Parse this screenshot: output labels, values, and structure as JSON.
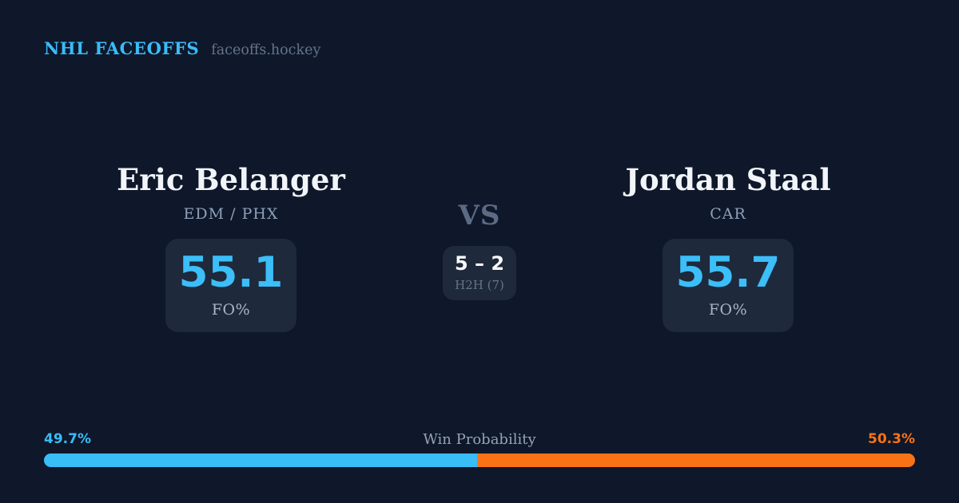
{
  "header": {
    "brand": "NHL FACEOFFS",
    "site": "faceoffs.hockey"
  },
  "players": {
    "left": {
      "name": "Eric Belanger",
      "teams": "EDM / PHX",
      "fo_value": "55.1",
      "fo_label": "FO%"
    },
    "right": {
      "name": "Jordan Staal",
      "teams": "CAR",
      "fo_value": "55.7",
      "fo_label": "FO%"
    }
  },
  "center": {
    "vs": "VS",
    "h2h_score": "5 – 2",
    "h2h_label": "H2H (7)"
  },
  "win_probability": {
    "label": "Win Probability",
    "left_pct_text": "49.7%",
    "right_pct_text": "50.3%",
    "left_value": 49.7,
    "right_value": 50.3
  },
  "colors": {
    "background": "#0f172a",
    "card": "#1e293b",
    "accent_blue": "#38bdf8",
    "accent_orange": "#f97316",
    "text_primary": "#f1f5f9",
    "text_muted": "#94a3b8",
    "vs_text": "#5b6b85"
  }
}
